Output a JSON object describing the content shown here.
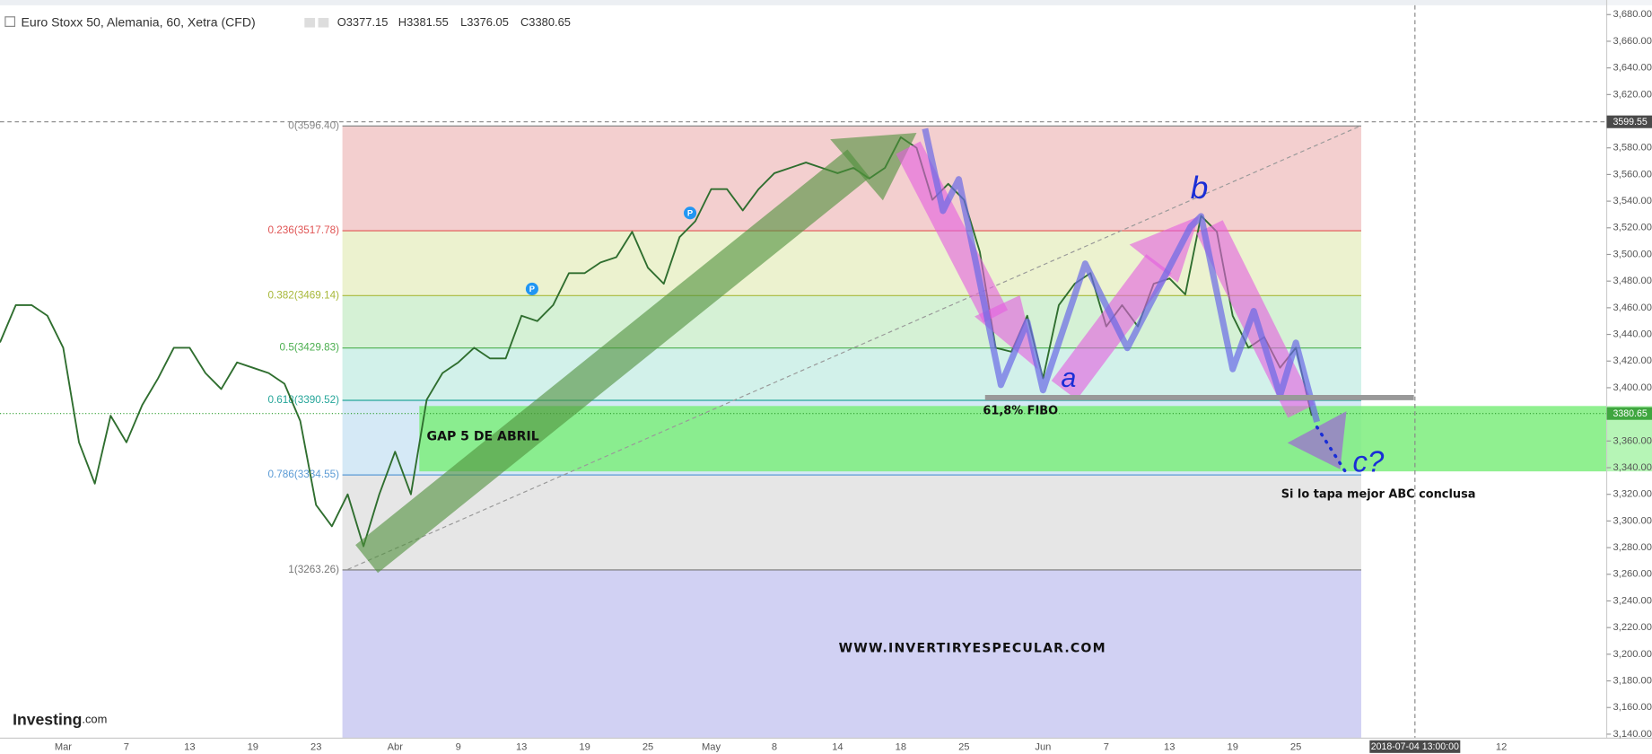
{
  "chart_data": {
    "type": "line",
    "title": "Euro Stoxx 50, Alemania, 60, Xetra (CFD)",
    "ohlc_labels": [
      "O3377.15",
      "H3381.55",
      "L3376.05",
      "C3380.65"
    ],
    "categories": [
      null,
      null,
      null,
      null,
      "Mar",
      null,
      null,
      null,
      "7",
      null,
      null,
      null,
      "13",
      null,
      null,
      null,
      "19",
      null,
      null,
      null,
      "23",
      null,
      null,
      null,
      null,
      "Abr",
      null,
      null,
      null,
      "9",
      null,
      null,
      null,
      "13",
      null,
      null,
      null,
      "19",
      null,
      null,
      null,
      "25",
      null,
      null,
      null,
      "May",
      null,
      null,
      null,
      "8",
      null,
      null,
      null,
      "14",
      null,
      null,
      null,
      "18",
      null,
      null,
      null,
      "25",
      null,
      null,
      null,
      null,
      "Jun",
      null,
      null,
      null,
      "7",
      null,
      null,
      null,
      "13",
      null,
      null,
      null,
      "19",
      null,
      null,
      null,
      "25",
      null,
      null,
      null,
      null,
      null,
      null,
      "2018-07-04 13:00:00",
      null,
      null,
      null,
      null,
      null,
      "12",
      null,
      null,
      null,
      null,
      null,
      null
    ],
    "series": [
      {
        "name": "Euro Stoxx 50",
        "color": "#2f6e2f",
        "values": [
          3434,
          3462,
          3462,
          3454,
          3430,
          3359,
          3328,
          3379,
          3359,
          3387,
          3407,
          3430,
          3430,
          3411,
          3399,
          3419,
          3415,
          3411,
          3403,
          3375,
          3312,
          3296,
          3320,
          3281,
          3320,
          3352,
          3320,
          3391,
          3411,
          3419,
          3430,
          3422,
          3422,
          3454,
          3450,
          3462,
          3486,
          3486,
          3494,
          3498,
          3517,
          3490,
          3478,
          3513,
          3525,
          3549,
          3549,
          3533,
          3549,
          3561,
          3565,
          3569,
          3565,
          3561,
          3565,
          3557,
          3565,
          3588,
          3580,
          3541,
          3553,
          3541,
          3502,
          3430,
          3427,
          3454,
          3407,
          3462,
          3478,
          3486,
          3446,
          3462,
          3446,
          3478,
          3482,
          3470,
          3529,
          3517,
          3454,
          3430,
          3438,
          3415,
          3430,
          3379,
          null,
          null,
          null,
          null,
          null,
          null,
          null,
          null,
          null,
          null,
          null,
          null,
          null,
          null,
          null,
          null,
          null,
          null
        ]
      }
    ],
    "ylim": [
      3137,
      3687
    ],
    "yticks": [
      {
        "value": 3140,
        "label": "3,140.00"
      },
      {
        "value": 3160,
        "label": "3,160.00"
      },
      {
        "value": 3180,
        "label": "3,180.00"
      },
      {
        "value": 3200,
        "label": "3,200.00"
      },
      {
        "value": 3220,
        "label": "3,220.00"
      },
      {
        "value": 3240,
        "label": "3,240.00"
      },
      {
        "value": 3260,
        "label": "3,260.00"
      },
      {
        "value": 3280,
        "label": "3,280.00"
      },
      {
        "value": 3300,
        "label": "3,300.00"
      },
      {
        "value": 3320,
        "label": "3,320.00"
      },
      {
        "value": 3340,
        "label": "3,340.00"
      },
      {
        "value": 3360,
        "label": "3,360.00"
      },
      {
        "value": 3380,
        "label": "3,380.00"
      },
      {
        "value": 3400,
        "label": "3,400.00"
      },
      {
        "value": 3420,
        "label": "3,420.00"
      },
      {
        "value": 3440,
        "label": "3,440.00"
      },
      {
        "value": 3460,
        "label": "3,460.00"
      },
      {
        "value": 3480,
        "label": "3,480.00"
      },
      {
        "value": 3500,
        "label": "3,500.00"
      },
      {
        "value": 3520,
        "label": "3,520.00"
      },
      {
        "value": 3540,
        "label": "3,540.00"
      },
      {
        "value": 3560,
        "label": "3,560.00"
      },
      {
        "value": 3580,
        "label": "3,580.00"
      },
      {
        "value": 3600,
        "label": "3,600.00"
      },
      {
        "value": 3620,
        "label": "3,620.00"
      },
      {
        "value": 3640,
        "label": "3,640.00"
      },
      {
        "value": 3660,
        "label": "3,660.00"
      },
      {
        "value": 3680,
        "label": "3,680.00"
      }
    ],
    "crosshair_price": 3599.55,
    "last_price": 3380.65,
    "fib_levels": [
      {
        "label": "0(3596.40)",
        "value": 3596.4,
        "color": "#888888"
      },
      {
        "label": "0.236(3517.78)",
        "value": 3517.78,
        "color": "#e05555"
      },
      {
        "label": "0.382(3469.14)",
        "value": 3469.14,
        "color": "#a8b83a"
      },
      {
        "label": "0.5(3429.83)",
        "value": 3429.83,
        "color": "#4caf50"
      },
      {
        "label": "0.618(3390.52)",
        "value": 3390.52,
        "color": "#26a69a"
      },
      {
        "label": "0.786(3334.55)",
        "value": 3334.55,
        "color": "#5b9bd5"
      },
      {
        "label": "1(3263.26)",
        "value": 3263.26,
        "color": "#777777"
      }
    ],
    "annotations": {
      "gap": "GAP 5 DE ABRIL",
      "fibo": "61,8% FIBO",
      "note": "Si lo tapa mejor ABC conclusa",
      "website": "WWW.INVERTIRYESPECULAR.COM",
      "wave_a": "a",
      "wave_b": "b",
      "wave_c": "c?",
      "markers": [
        "P",
        "P"
      ]
    },
    "logo": {
      "name": "Investing",
      "suffix": ".com"
    }
  }
}
